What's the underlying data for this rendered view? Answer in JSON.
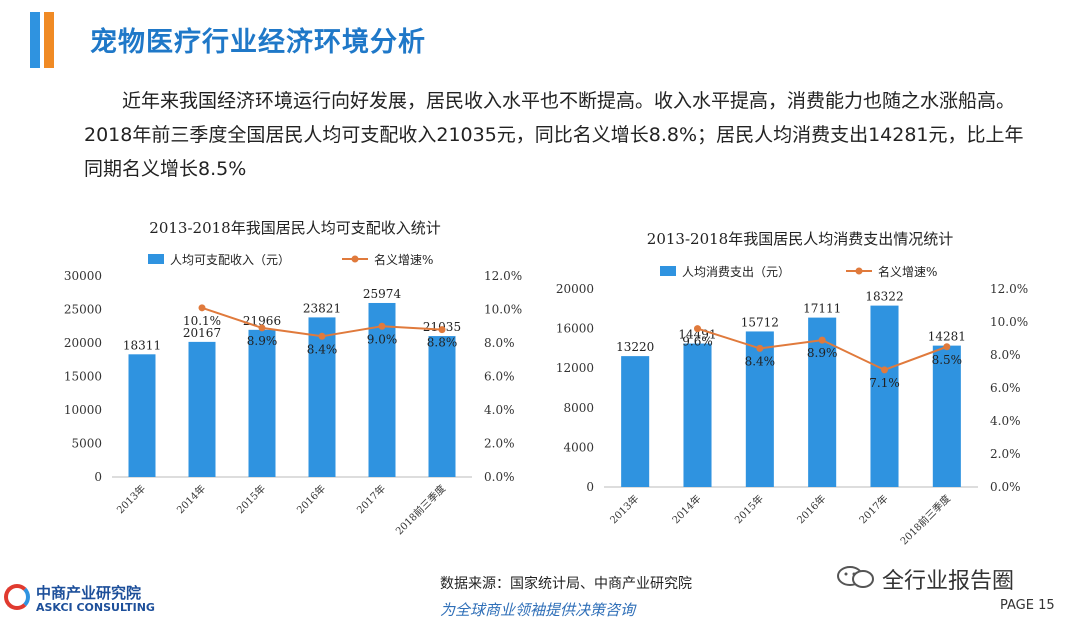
{
  "header": {
    "title": "宠物医疗行业经济环境分析"
  },
  "intro": {
    "text": "近年来我国经济环境运行向好发展，居民收入水平也不断提高。收入水平提高，消费能力也随之水涨船高。2018年前三季度全国居民人均可支配收入21035元，同比名义增长8.8%；居民人均消费支出14281元，比上年同期名义增长8.5%"
  },
  "chart_data": [
    {
      "type": "bar",
      "title": "2013-2018年我国居民人均可支配收入统计",
      "categories": [
        "2013年",
        "2014年",
        "2015年",
        "2016年",
        "2017年",
        "2018前三季度"
      ],
      "series": [
        {
          "name": "人均可支配收入（元）",
          "type": "bar",
          "axis": "left",
          "values": [
            18311,
            20167,
            21966,
            23821,
            25974,
            21035
          ],
          "labels": [
            "18311",
            "20167",
            "21966",
            "23821",
            "25974",
            "21035"
          ]
        },
        {
          "name": "名义增速%",
          "type": "line",
          "axis": "right",
          "values": [
            null,
            10.1,
            8.9,
            8.4,
            9.0,
            8.8
          ],
          "labels": [
            "",
            "10.1%",
            "8.9%",
            "8.4%",
            "9.0%",
            "8.8%"
          ]
        }
      ],
      "left_ylim": [
        0,
        30000
      ],
      "left_ticks": [
        "0",
        "5000",
        "10000",
        "15000",
        "20000",
        "25000",
        "30000"
      ],
      "right_ylim": [
        0,
        12
      ],
      "right_ticks": [
        "0.0%",
        "2.0%",
        "4.0%",
        "6.0%",
        "8.0%",
        "10.0%",
        "12.0%"
      ],
      "legend": "top"
    },
    {
      "type": "bar",
      "title": "2013-2018年我国居民人均消费支出情况统计",
      "categories": [
        "2013年",
        "2014年",
        "2015年",
        "2016年",
        "2017年",
        "2018前三季度"
      ],
      "series": [
        {
          "name": "人均消费支出（元）",
          "type": "bar",
          "axis": "left",
          "values": [
            13220,
            14491,
            15712,
            17111,
            18322,
            14281
          ],
          "labels": [
            "13220",
            "14491",
            "15712",
            "17111",
            "18322",
            "14281"
          ]
        },
        {
          "name": "名义增速%",
          "type": "line",
          "axis": "right",
          "values": [
            null,
            9.6,
            8.4,
            8.9,
            7.1,
            8.5
          ],
          "labels": [
            "",
            "9.6%",
            "8.4%",
            "8.9%",
            "7.1%",
            "8.5%"
          ]
        }
      ],
      "left_ylim": [
        0,
        20000
      ],
      "left_ticks": [
        "0",
        "4000",
        "8000",
        "12000",
        "16000",
        "20000"
      ],
      "right_ylim": [
        0,
        12
      ],
      "right_ticks": [
        "0.0%",
        "2.0%",
        "4.0%",
        "6.0%",
        "8.0%",
        "10.0%",
        "12.0%"
      ],
      "legend": "top"
    }
  ],
  "colors": {
    "bar": "#2f93e0",
    "line": "#e07a3c",
    "title_blue": "#1f78c8",
    "accent_orange": "#f08a24"
  },
  "footer": {
    "source": "数据来源：国家统计局、中商产业研究院",
    "slogan": "为全球商业领袖提供决策咨询",
    "logo_cn": "中商产业研究院",
    "logo_en": "ASKCI CONSULTING",
    "wechat": "全行业报告圈",
    "page": "PAGE  15"
  }
}
